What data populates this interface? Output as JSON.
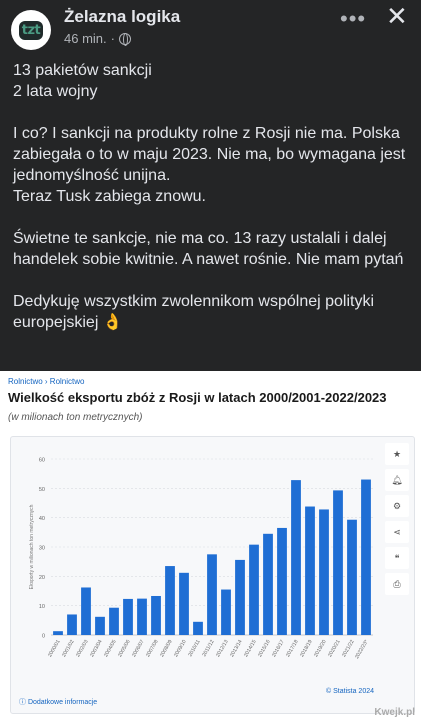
{
  "post": {
    "author": "Żelazna logika",
    "avatar_text": "tzt",
    "time": "46 min.",
    "separator": "·",
    "menu_icon": "more-dots-icon",
    "close_icon": "close-icon",
    "paragraphs": [
      "13 pakietów sankcji\n2 lata wojny",
      "I co? I sankcji na produkty rolne z Rosji nie ma. Polska zabiegała o to w maju 2023. Nie ma, bo wymagana jest jednomyślność unijna.\nTeraz Tusk zabiega znowu.",
      "Świetne te sankcje, nie ma co. 13 razy ustalali i dalej handelek sobie kwitnie. A nawet rośnie. Nie mam pytań",
      "Dedykuję wszystkim zwolennikom wspólnej polityki europejskiej 👌"
    ]
  },
  "card": {
    "breadcrumb": "Rolnictwo › Rolnictwo",
    "title": "Wielkość eksportu zbóż z Rosji w latach 2000/2001-2022/2023",
    "subtitle": "(w milionach ton metrycznych)",
    "sidebar_icons": [
      "star-icon",
      "bell-icon",
      "gear-icon",
      "share-icon",
      "quote-icon",
      "print-icon"
    ],
    "footer_left": "ⓘ Dodatkowe informacje",
    "footer_right": "© Statista 2024",
    "watermark": "Kwejk.pl"
  },
  "chart_data": {
    "type": "bar",
    "ylabel": "Eksporty w milionach ton metrycznych",
    "ylim": [
      0,
      60
    ],
    "yticks": [
      0,
      10,
      20,
      30,
      40,
      50,
      60
    ],
    "bar_color": "#1f6ed4",
    "categories": [
      "2000/01",
      "2001/02",
      "2002/03",
      "2003/04",
      "2004/05",
      "2005/06",
      "2006/07",
      "2007/08",
      "2008/09",
      "2009/10",
      "2010/11",
      "2011/12",
      "2012/13",
      "2013/14",
      "2014/15",
      "2015/16",
      "2016/17",
      "2017/18",
      "2018/19",
      "2019/20",
      "2020/21",
      "2021/22",
      "2022/23*"
    ],
    "values": [
      1.3,
      7,
      16.2,
      6.2,
      9.3,
      12.3,
      12.4,
      13.3,
      23.5,
      21.2,
      4.5,
      27.5,
      15.5,
      25.6,
      30.8,
      34.5,
      36.5,
      52.8,
      43.8,
      42.8,
      49.3,
      39.3,
      53
    ]
  }
}
